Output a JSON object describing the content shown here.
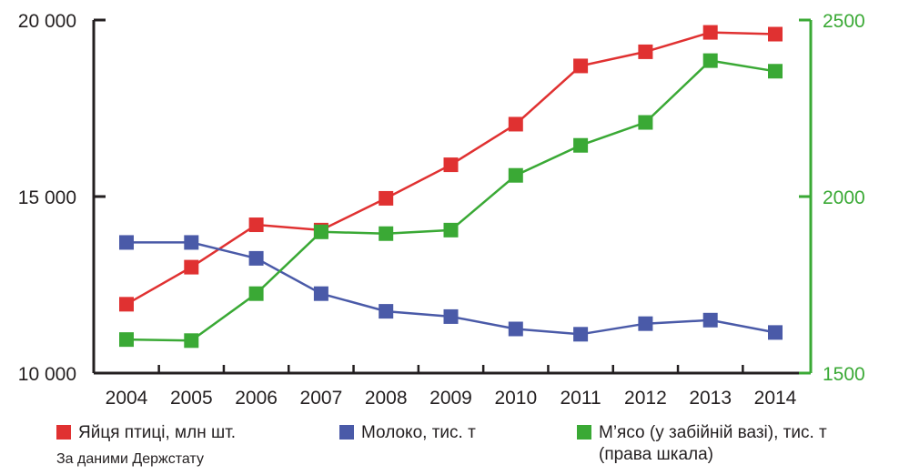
{
  "chart_data": {
    "type": "line",
    "x": [
      "2004",
      "2005",
      "2006",
      "2007",
      "2008",
      "2009",
      "2010",
      "2011",
      "2012",
      "2013",
      "2014"
    ],
    "y_left": {
      "ticks": [
        "20 000",
        "15 000",
        "10 000"
      ],
      "min": 10000,
      "max": 20000,
      "values": [
        20000,
        15000,
        10000
      ]
    },
    "y_right": {
      "ticks": [
        "2500",
        "2000",
        "1500"
      ],
      "min": 1500,
      "max": 2500,
      "values": [
        2500,
        2000,
        1500
      ],
      "color": "#3aa935"
    },
    "series": [
      {
        "name": "Яйця птиці, млн шт.",
        "axis": "left",
        "color": "#e03131",
        "values": [
          11950,
          13000,
          14200,
          14050,
          14950,
          15900,
          17050,
          18700,
          19100,
          19650,
          19600
        ]
      },
      {
        "name": "Молоко, тис. т",
        "axis": "left",
        "color": "#4a5aa8",
        "values": [
          13700,
          13700,
          13250,
          12250,
          11750,
          11600,
          11250,
          11100,
          11400,
          11500,
          11150
        ]
      },
      {
        "name": "М’ясо (у забійній вазі), тис. т",
        "name_line2": "(права шкала)",
        "axis": "right",
        "color": "#3aa935",
        "values": [
          1595,
          1592,
          1725,
          1900,
          1895,
          1905,
          2060,
          2145,
          2210,
          2385,
          2355
        ]
      }
    ]
  },
  "source": "За даними Держстату"
}
